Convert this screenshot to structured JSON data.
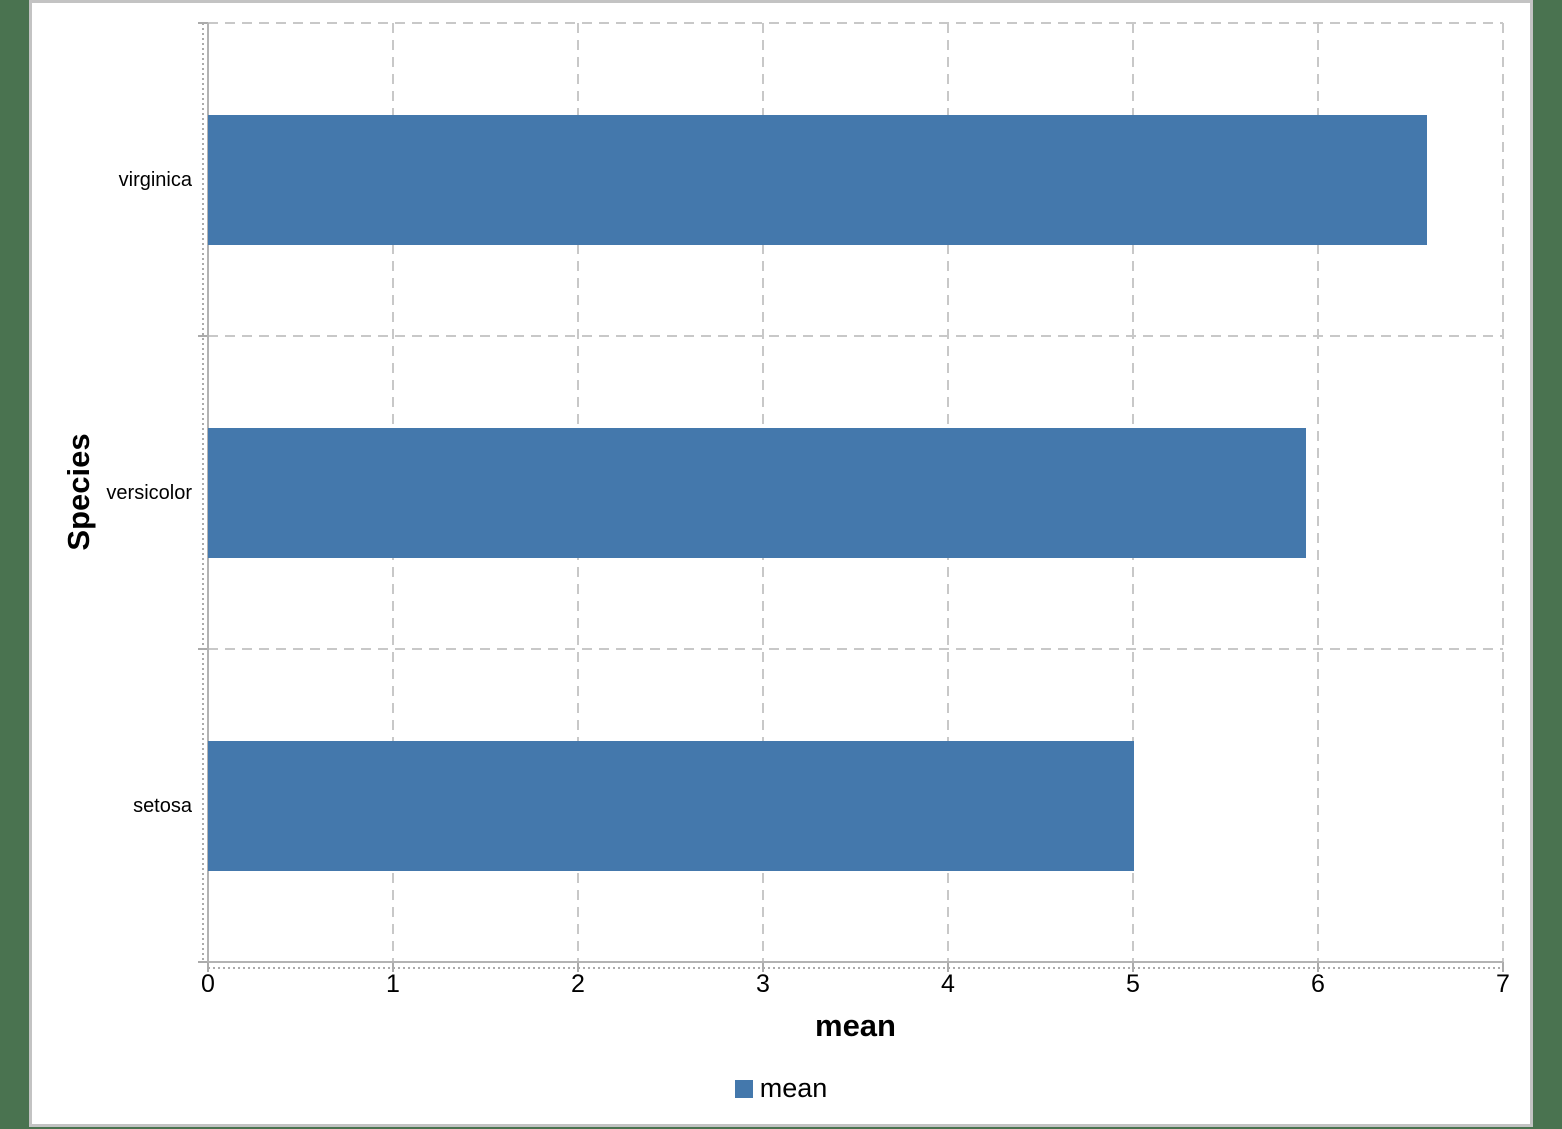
{
  "window": {
    "background_color": "#4A7350",
    "canvas_background": "#FFFFFF",
    "canvas_border_color": "#C3C3C3"
  },
  "chart_data": {
    "type": "bar",
    "orientation": "horizontal",
    "title": "",
    "xlabel": "mean",
    "ylabel": "Species",
    "categories": [
      "setosa",
      "versicolor",
      "virginica"
    ],
    "category_axis_order": "bottom-to-top",
    "series": [
      {
        "name": "mean",
        "values": [
          5.006,
          5.936,
          6.588
        ]
      }
    ],
    "xlim": [
      0,
      7
    ],
    "xtick_labels": [
      "0",
      "1",
      "2",
      "3",
      "4",
      "5",
      "6",
      "7"
    ],
    "grid": "major-dashed",
    "gridline_color": "#C8C8C8",
    "axis_line_color": "#B3B3B3",
    "tick_color": "#ABABAB",
    "text_color": "#000000",
    "bar_color": "#4478AC",
    "legend": {
      "position": "bottom-center",
      "entries": [
        {
          "label": "mean",
          "swatch_color": "#4478AC"
        }
      ]
    }
  }
}
